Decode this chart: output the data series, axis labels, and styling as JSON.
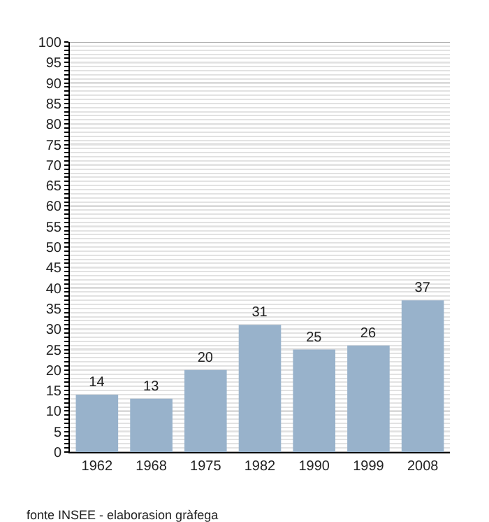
{
  "chart_data": {
    "type": "bar",
    "categories": [
      "1962",
      "1968",
      "1975",
      "1982",
      "1990",
      "1999",
      "2008"
    ],
    "values": [
      14,
      13,
      20,
      31,
      25,
      26,
      37
    ],
    "color": "#98b2cb",
    "data_labels": true,
    "ylim": [
      0,
      100
    ],
    "yticks": [
      0,
      {
        "value": 1,
        "label": null
      },
      {
        "value": 2,
        "label": null
      },
      {
        "value": 3,
        "label": null
      },
      {
        "value": 4,
        "label": null
      },
      5,
      {
        "value": 6,
        "label": null
      },
      {
        "value": 7,
        "label": null
      },
      {
        "value": 8,
        "label": null
      },
      {
        "value": 9,
        "label": null
      },
      10,
      {
        "value": 11,
        "label": null
      },
      {
        "value": 12,
        "label": null
      },
      {
        "value": 13,
        "label": null
      },
      {
        "value": 14,
        "label": null
      },
      15,
      {
        "value": 16,
        "label": null
      },
      {
        "value": 17,
        "label": null
      },
      {
        "value": 18,
        "label": null
      },
      {
        "value": 19,
        "label": null
      },
      20,
      {
        "value": 21,
        "label": null
      },
      {
        "value": 22,
        "label": null
      },
      {
        "value": 23,
        "label": null
      },
      {
        "value": 24,
        "label": null
      },
      25,
      {
        "value": 26,
        "label": null
      },
      {
        "value": 27,
        "label": null
      },
      {
        "value": 28,
        "label": null
      },
      {
        "value": 29,
        "label": null
      },
      30,
      {
        "value": 31,
        "label": null
      },
      {
        "value": 32,
        "label": null
      },
      {
        "value": 33,
        "label": null
      },
      {
        "value": 34,
        "label": null
      },
      35,
      {
        "value": 36,
        "label": null
      },
      {
        "value": 37,
        "label": null
      },
      {
        "value": 38,
        "label": null
      },
      {
        "value": 39,
        "label": null
      },
      40,
      {
        "value": 41,
        "label": null
      },
      {
        "value": 42,
        "label": null
      },
      {
        "value": 43,
        "label": null
      },
      {
        "value": 44,
        "label": null
      },
      45,
      {
        "value": 46,
        "label": null
      },
      {
        "value": 47,
        "label": null
      },
      {
        "value": 48,
        "label": null
      },
      {
        "value": 49,
        "label": null
      },
      50,
      {
        "value": 51,
        "label": null
      },
      {
        "value": 52,
        "label": null
      },
      {
        "value": 53,
        "label": null
      },
      {
        "value": 54,
        "label": null
      },
      55,
      {
        "value": 56,
        "label": null
      },
      {
        "value": 57,
        "label": null
      },
      {
        "value": 58,
        "label": null
      },
      {
        "value": 59,
        "label": null
      },
      60,
      {
        "value": 61,
        "label": null
      },
      {
        "value": 62,
        "label": null
      },
      {
        "value": 63,
        "label": null
      },
      {
        "value": 64,
        "label": null
      },
      65,
      {
        "value": 66,
        "label": null
      },
      {
        "value": 67,
        "label": null
      },
      {
        "value": 68,
        "label": null
      },
      {
        "value": 69,
        "label": null
      },
      70,
      {
        "value": 71,
        "label": null
      },
      {
        "value": 72,
        "label": null
      },
      {
        "value": 73,
        "label": null
      },
      {
        "value": 74,
        "label": null
      },
      75,
      {
        "value": 76,
        "label": null
      },
      {
        "value": 77,
        "label": null
      },
      {
        "value": 78,
        "label": null
      },
      {
        "value": 79,
        "label": null
      },
      80,
      {
        "value": 81,
        "label": null
      },
      {
        "value": 82,
        "label": null
      },
      {
        "value": 83,
        "label": null
      },
      {
        "value": 84,
        "label": null
      },
      85,
      {
        "value": 86,
        "label": null
      },
      {
        "value": 87,
        "label": null
      },
      {
        "value": 88,
        "label": null
      },
      {
        "value": 89,
        "label": null
      },
      90,
      {
        "value": 91,
        "label": null
      },
      {
        "value": 92,
        "label": null
      },
      {
        "value": 93,
        "label": null
      },
      {
        "value": 94,
        "label": null
      },
      95,
      {
        "value": 96,
        "label": null
      },
      {
        "value": 97,
        "label": null
      },
      {
        "value": 98,
        "label": null
      },
      {
        "value": 99,
        "label": null
      },
      100
    ],
    "grid": true,
    "annotations": [
      "fonte INSEE - elaborasion gràfega"
    ]
  }
}
